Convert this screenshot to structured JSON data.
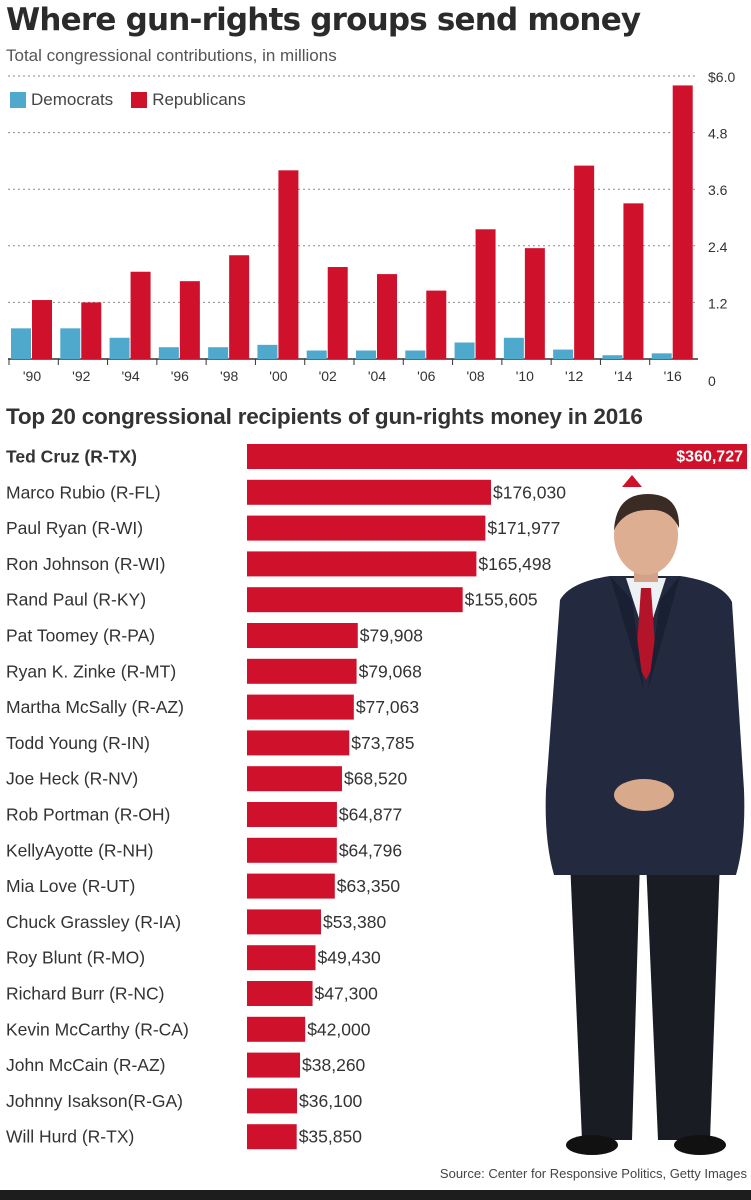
{
  "header": {
    "title": "Where gun-rights groups send money",
    "subtitle": "Total congressional contributions, in millions"
  },
  "colors": {
    "democrats": "#4fa9cc",
    "republicans": "#d0112b"
  },
  "chart_data": [
    {
      "type": "bar",
      "title": "Where gun-rights groups send money",
      "subtitle": "Total congressional contributions, in millions",
      "categories": [
        "'90",
        "'92",
        "'94",
        "'96",
        "'98",
        "'00",
        "'02",
        "'04",
        "'06",
        "'08",
        "'10",
        "'12",
        "'14",
        "'16"
      ],
      "series": [
        {
          "name": "Democrats",
          "values": [
            0.65,
            0.65,
            0.45,
            0.25,
            0.25,
            0.3,
            0.18,
            0.18,
            0.18,
            0.35,
            0.45,
            0.2,
            0.08,
            0.12
          ]
        },
        {
          "name": "Republicans",
          "values": [
            1.25,
            1.2,
            1.85,
            1.65,
            2.2,
            4.0,
            1.95,
            1.8,
            1.45,
            2.75,
            2.35,
            4.1,
            3.3,
            5.8
          ]
        }
      ],
      "ylim": [
        0,
        6.0
      ],
      "yticks": [
        "0",
        "1.2",
        "2.4",
        "3.6",
        "4.8",
        "$6.0"
      ],
      "ytick_values": [
        0,
        1.2,
        2.4,
        3.6,
        4.8,
        6.0
      ],
      "legend": "top-left",
      "grid": "dotted horizontal"
    },
    {
      "type": "bar",
      "orientation": "horizontal",
      "title": "Top 20 congressional recipients of gun-rights money in 2016",
      "categories": [
        "Ted Cruz (R-TX)",
        "Marco Rubio (R-FL)",
        "Paul Ryan (R-WI)",
        "Ron Johnson (R-WI)",
        "Rand Paul (R-KY)",
        "Pat Toomey (R-PA)",
        "Ryan K. Zinke (R-MT)",
        "Martha McSally (R-AZ)",
        "Todd Young (R-IN)",
        "Joe Heck (R-NV)",
        "Rob Portman (R-OH)",
        "KellyAyotte (R-NH)",
        "Mia Love (R-UT)",
        "Chuck Grassley (R-IA)",
        "Roy Blunt (R-MO)",
        "Richard Burr (R-NC)",
        "Kevin McCarthy (R-CA)",
        "John McCain (R-AZ)",
        "Johnny  Isakson(R-GA)",
        "Will Hurd (R-TX)"
      ],
      "values": [
        360727,
        176030,
        171977,
        165498,
        155605,
        79908,
        79068,
        77063,
        73785,
        68520,
        64877,
        64796,
        63350,
        53380,
        49430,
        47300,
        42000,
        38260,
        36100,
        35850
      ],
      "value_labels": [
        "$360,727",
        "$176,030",
        "$171,977",
        "$165,498",
        "$155,605",
        "$79,908",
        "$79,068",
        "$77,063",
        "$73,785",
        "$68,520",
        "$64,877",
        "$64,796",
        "$63,350",
        "$53,380",
        "$49,430",
        "$47,300",
        "$42,000",
        "$38,260",
        "$36,100",
        "$35,850"
      ]
    }
  ],
  "footer": {
    "source": "Source: Center for Responsive Politics, Getty Images"
  }
}
